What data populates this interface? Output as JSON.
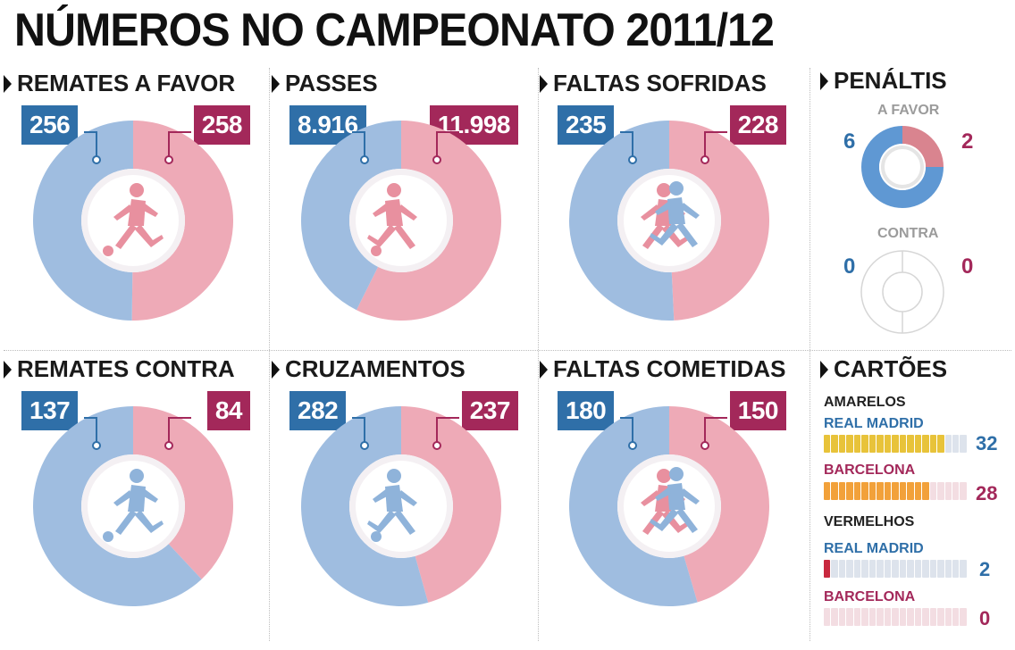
{
  "title": "NÚMEROS NO CAMPEONATO 2011/12",
  "colors": {
    "blue": "#2f6fa8",
    "red": "#a3285a",
    "blue_light": "#9fbde0",
    "red_light": "#eeaab7",
    "yellow": "#e8c33a",
    "orange": "#f2a13a",
    "card_red": "#c8283e",
    "empty": "#e3e3e3"
  },
  "chart_data": [
    {
      "type": "pie",
      "title": "REMATES A FAVOR",
      "values": [
        256,
        258
      ],
      "value_labels": [
        "256",
        "258"
      ],
      "icon": "player-kicking-icon"
    },
    {
      "type": "pie",
      "title": "PASSES",
      "values": [
        8916,
        11998
      ],
      "value_labels": [
        "8.916",
        "11.998"
      ],
      "icon": "player-running-icon"
    },
    {
      "type": "pie",
      "title": "FALTAS SOFRIDAS",
      "values": [
        235,
        228
      ],
      "value_labels": [
        "235",
        "228"
      ],
      "icon": "players-tackle-icon"
    },
    {
      "type": "pie",
      "title": "REMATES CONTRA",
      "values": [
        137,
        84
      ],
      "value_labels": [
        "137",
        "84"
      ],
      "icon": "player-kicking-icon"
    },
    {
      "type": "pie",
      "title": "CRUZAMENTOS",
      "values": [
        282,
        237
      ],
      "value_labels": [
        "282",
        "237"
      ],
      "icon": "player-running-icon"
    },
    {
      "type": "pie",
      "title": "FALTAS COMETIDAS",
      "values": [
        180,
        150
      ],
      "value_labels": [
        "180",
        "150"
      ],
      "icon": "players-tackle-icon"
    },
    {
      "type": "pie",
      "title": "PENÁLTIS",
      "groups": [
        {
          "label": "A FAVOR",
          "values": [
            6,
            2
          ],
          "value_labels": [
            "6",
            "2"
          ]
        },
        {
          "label": "CONTRA",
          "values": [
            0,
            0
          ],
          "value_labels": [
            "0",
            "0"
          ]
        }
      ]
    },
    {
      "type": "bar",
      "title": "CARTÕES",
      "groups": [
        {
          "label": "AMARELOS",
          "total_slots": 38,
          "series": [
            {
              "name": "REAL MADRID",
              "value": 32,
              "value_label": "32",
              "color": "#e8c33a"
            },
            {
              "name": "BARCELONA",
              "value": 28,
              "value_label": "28",
              "color": "#f2a13a"
            }
          ]
        },
        {
          "label": "VERMELHOS",
          "total_slots": 38,
          "series": [
            {
              "name": "REAL MADRID",
              "value": 2,
              "value_label": "2",
              "color": "#c8283e"
            },
            {
              "name": "BARCELONA",
              "value": 0,
              "value_label": "0",
              "color": "#c8283e"
            }
          ]
        }
      ]
    }
  ]
}
